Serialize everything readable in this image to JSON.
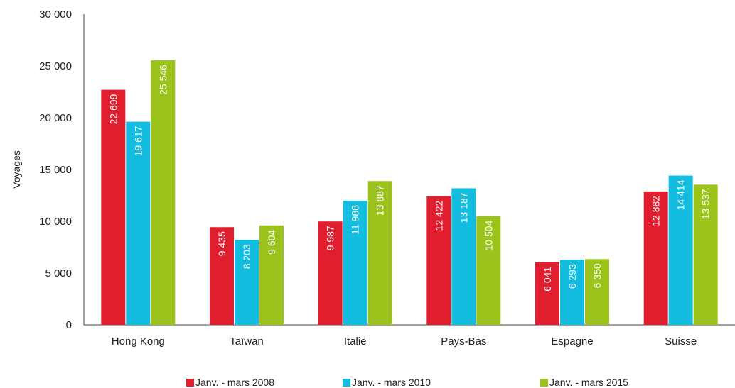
{
  "chart_data": {
    "type": "bar",
    "title": "",
    "xlabel": "",
    "ylabel": "Voyages",
    "ylim": [
      0,
      30000
    ],
    "yticks": [
      0,
      5000,
      10000,
      15000,
      20000,
      25000,
      30000
    ],
    "ytick_labels": [
      "0",
      "5 000",
      "10 000",
      "15 000",
      "20 000",
      "25 000",
      "30 000"
    ],
    "categories": [
      "Hong Kong",
      "Taïwan",
      "Italie",
      "Pays-Bas",
      "Espagne",
      "Suisse"
    ],
    "series": [
      {
        "name": "Janv. - mars 2008",
        "color": "#e01e2e",
        "values": [
          22699,
          9435,
          9987,
          12422,
          6041,
          12882
        ],
        "labels": [
          "22 699",
          "9 435",
          "9 987",
          "12 422",
          "6 041",
          "12 882"
        ]
      },
      {
        "name": "Janv. - mars 2010",
        "color": "#12bde0",
        "values": [
          19617,
          8203,
          11988,
          13187,
          6293,
          14414
        ],
        "labels": [
          "19 617",
          "8 203",
          "11 988",
          "13 187",
          "6 293",
          "14 414"
        ]
      },
      {
        "name": "Janv. - mars 2015",
        "color": "#9bc31c",
        "values": [
          25546,
          9604,
          13887,
          10504,
          6350,
          13537
        ],
        "labels": [
          "25 546",
          "9 604",
          "13 887",
          "10 504",
          "6 350",
          "13 537"
        ]
      }
    ],
    "legend_position": "bottom",
    "grid": false
  }
}
